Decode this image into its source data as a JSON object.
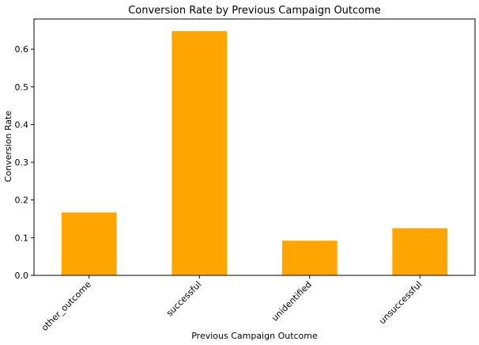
{
  "chart_data": {
    "type": "bar",
    "title": "Conversion Rate by Previous Campaign Outcome",
    "xlabel": "Previous Campaign Outcome",
    "ylabel": "Conversion Rate",
    "categories": [
      "other_outcome",
      "successful",
      "unidentified",
      "unsuccessful"
    ],
    "values": [
      0.167,
      0.648,
      0.092,
      0.125
    ],
    "yticks": [
      "0.0",
      "0.1",
      "0.2",
      "0.3",
      "0.4",
      "0.5",
      "0.6"
    ],
    "ylim": [
      0,
      0.68
    ],
    "grid": false,
    "legend": false,
    "bar_color": "#FFA500"
  }
}
